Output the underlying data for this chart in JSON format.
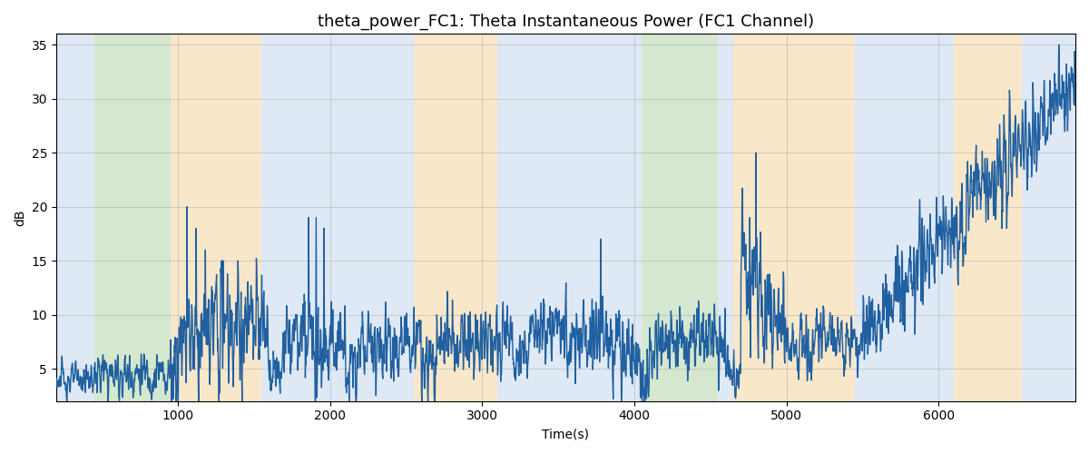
{
  "title": "theta_power_FC1: Theta Instantaneous Power (FC1 Channel)",
  "xlabel": "Time(s)",
  "ylabel": "dB",
  "ylim": [
    2,
    36
  ],
  "xlim": [
    200,
    6900
  ],
  "line_color": "#2060a0",
  "line_width": 1.0,
  "background_regions": [
    {
      "xstart": 200,
      "xend": 450,
      "color": "#c5d8ee"
    },
    {
      "xstart": 450,
      "xend": 950,
      "color": "#b5d5a8"
    },
    {
      "xstart": 950,
      "xend": 1550,
      "color": "#f5d5a0"
    },
    {
      "xstart": 1550,
      "xend": 2550,
      "color": "#c5d8ee"
    },
    {
      "xstart": 2550,
      "xend": 3100,
      "color": "#f5d5a0"
    },
    {
      "xstart": 3100,
      "xend": 3950,
      "color": "#c5d8ee"
    },
    {
      "xstart": 3950,
      "xend": 4050,
      "color": "#c5d8ee"
    },
    {
      "xstart": 4050,
      "xend": 4550,
      "color": "#b5d5a8"
    },
    {
      "xstart": 4550,
      "xend": 4650,
      "color": "#c5d8ee"
    },
    {
      "xstart": 4650,
      "xend": 5450,
      "color": "#f5d5a0"
    },
    {
      "xstart": 5450,
      "xend": 6100,
      "color": "#c5d8ee"
    },
    {
      "xstart": 6100,
      "xend": 6550,
      "color": "#f5d5a0"
    },
    {
      "xstart": 6550,
      "xend": 6900,
      "color": "#c5d8ee"
    }
  ],
  "grid_color": "#aaaaaa",
  "grid_alpha": 0.6,
  "figsize": [
    12,
    5
  ],
  "dpi": 100,
  "seed": 123,
  "title_fontsize": 13
}
